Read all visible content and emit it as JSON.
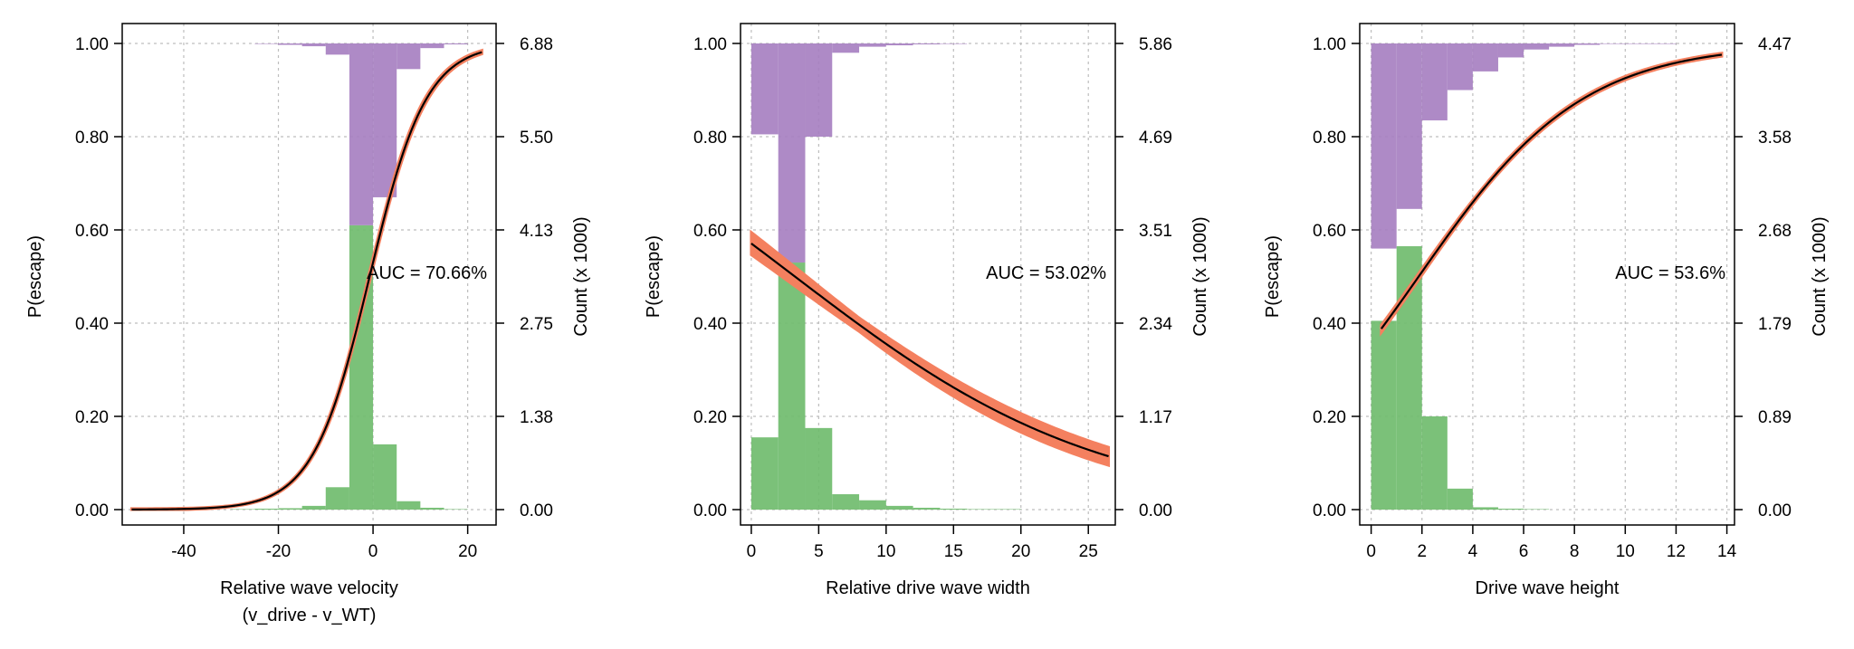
{
  "colors": {
    "bar_top": "#A57DC0",
    "bar_bottom": "#6DBA6A",
    "ci_band": "#F4805F",
    "curve": "#000000",
    "grid": "#BDBDBD"
  },
  "chart_data": [
    {
      "type": "bar",
      "xlabel": "Relative wave velocity",
      "xlabel2": "(v_drive - v_WT)",
      "ylabel": "P(escape)",
      "ylabel_right": "Count (x 1000)",
      "annotation": "AUC = 70.66%",
      "xlim": [
        -53,
        26
      ],
      "ylim": [
        0,
        1
      ],
      "x_ticks": [
        "-40",
        "-20",
        "0",
        "20"
      ],
      "x_tick_values": [
        -40,
        -20,
        0,
        20
      ],
      "y_ticks": [
        "0.00",
        "0.20",
        "0.40",
        "0.60",
        "0.80",
        "1.00"
      ],
      "y_tick_values": [
        0,
        0.2,
        0.4,
        0.6,
        0.8,
        1.0
      ],
      "y_right_ticks": [
        "0.00",
        "1.38",
        "2.75",
        "4.13",
        "5.50",
        "6.88"
      ],
      "bins": [
        {
          "x0": -30,
          "x1": -25,
          "bottom": 0.001,
          "top": 0.0
        },
        {
          "x0": -25,
          "x1": -20,
          "bottom": 0.002,
          "top": 0.001
        },
        {
          "x0": -20,
          "x1": -15,
          "bottom": 0.003,
          "top": 0.003
        },
        {
          "x0": -15,
          "x1": -10,
          "bottom": 0.008,
          "top": 0.006
        },
        {
          "x0": -10,
          "x1": -5,
          "bottom": 0.048,
          "top": 0.024
        },
        {
          "x0": -5,
          "x1": 0,
          "bottom": 0.61,
          "top": 0.39
        },
        {
          "x0": 0,
          "x1": 5,
          "bottom": 0.14,
          "top": 0.33
        },
        {
          "x0": 5,
          "x1": 10,
          "bottom": 0.018,
          "top": 0.055
        },
        {
          "x0": 10,
          "x1": 15,
          "bottom": 0.004,
          "top": 0.01
        },
        {
          "x0": 15,
          "x1": 20,
          "bottom": 0.001,
          "top": 0.002
        }
      ],
      "curve": {
        "x_start": -51,
        "x_end": 23,
        "intercept": 0.12,
        "slope": 0.167,
        "ci_width": 0.012
      }
    },
    {
      "type": "bar",
      "xlabel": "Relative drive wave width",
      "xlabel2": "",
      "ylabel": "P(escape)",
      "ylabel_right": "Count (x 1000)",
      "annotation": "AUC = 53.02%",
      "xlim": [
        -0.8,
        27.0
      ],
      "ylim": [
        0,
        1
      ],
      "x_ticks": [
        "0",
        "5",
        "10",
        "15",
        "20",
        "25"
      ],
      "x_tick_values": [
        0,
        5,
        10,
        15,
        20,
        25
      ],
      "y_ticks": [
        "0.00",
        "0.20",
        "0.40",
        "0.60",
        "0.80",
        "1.00"
      ],
      "y_tick_values": [
        0,
        0.2,
        0.4,
        0.6,
        0.8,
        1.0
      ],
      "y_right_ticks": [
        "0.00",
        "1.17",
        "2.34",
        "3.51",
        "4.69",
        "5.86"
      ],
      "bins": [
        {
          "x0": 0,
          "x1": 2,
          "bottom": 0.155,
          "top": 0.195
        },
        {
          "x0": 2,
          "x1": 4,
          "bottom": 0.53,
          "top": 0.47
        },
        {
          "x0": 4,
          "x1": 6,
          "bottom": 0.175,
          "top": 0.2
        },
        {
          "x0": 6,
          "x1": 8,
          "bottom": 0.033,
          "top": 0.02
        },
        {
          "x0": 8,
          "x1": 10,
          "bottom": 0.02,
          "top": 0.007
        },
        {
          "x0": 10,
          "x1": 12,
          "bottom": 0.008,
          "top": 0.004
        },
        {
          "x0": 12,
          "x1": 14,
          "bottom": 0.004,
          "top": 0.002
        },
        {
          "x0": 14,
          "x1": 16,
          "bottom": 0.002,
          "top": 0.001
        },
        {
          "x0": 16,
          "x1": 20,
          "bottom": 0.001,
          "top": 0.0
        }
      ],
      "curve": {
        "x_start": 0,
        "x_end": 26.5,
        "intercept": 0.285,
        "slope": -0.088,
        "ci_width": 0.03
      }
    },
    {
      "type": "bar",
      "xlabel": "Drive wave height",
      "xlabel2": "",
      "ylabel": "P(escape)",
      "ylabel_right": "Count (x 1000)",
      "annotation": "AUC = 53.6%",
      "xlim": [
        -0.45,
        14.3
      ],
      "ylim": [
        0,
        1
      ],
      "x_ticks": [
        "0",
        "2",
        "4",
        "6",
        "8",
        "10",
        "12",
        "14"
      ],
      "x_tick_values": [
        0,
        2,
        4,
        6,
        8,
        10,
        12,
        14
      ],
      "y_ticks": [
        "0.00",
        "0.20",
        "0.40",
        "0.60",
        "0.80",
        "1.00"
      ],
      "y_tick_values": [
        0,
        0.2,
        0.4,
        0.6,
        0.8,
        1.0
      ],
      "y_right_ticks": [
        "0.00",
        "0.89",
        "1.79",
        "2.68",
        "3.58",
        "4.47"
      ],
      "bins": [
        {
          "x0": 0,
          "x1": 1,
          "bottom": 0.405,
          "top": 0.44
        },
        {
          "x0": 1,
          "x1": 2,
          "bottom": 0.565,
          "top": 0.355
        },
        {
          "x0": 2,
          "x1": 3,
          "bottom": 0.2,
          "top": 0.165
        },
        {
          "x0": 3,
          "x1": 4,
          "bottom": 0.045,
          "top": 0.1
        },
        {
          "x0": 4,
          "x1": 5,
          "bottom": 0.005,
          "top": 0.06
        },
        {
          "x0": 5,
          "x1": 6,
          "bottom": 0.002,
          "top": 0.03
        },
        {
          "x0": 6,
          "x1": 7,
          "bottom": 0.001,
          "top": 0.013
        },
        {
          "x0": 7,
          "x1": 8,
          "bottom": 0.0,
          "top": 0.007
        },
        {
          "x0": 8,
          "x1": 9,
          "bottom": 0.0,
          "top": 0.003
        },
        {
          "x0": 9,
          "x1": 12,
          "bottom": 0.0,
          "top": 0.001
        }
      ],
      "curve": {
        "x_start": 0.4,
        "x_end": 13.8,
        "intercept": -0.58,
        "slope": 0.31,
        "ci_width": 0.01
      }
    }
  ]
}
